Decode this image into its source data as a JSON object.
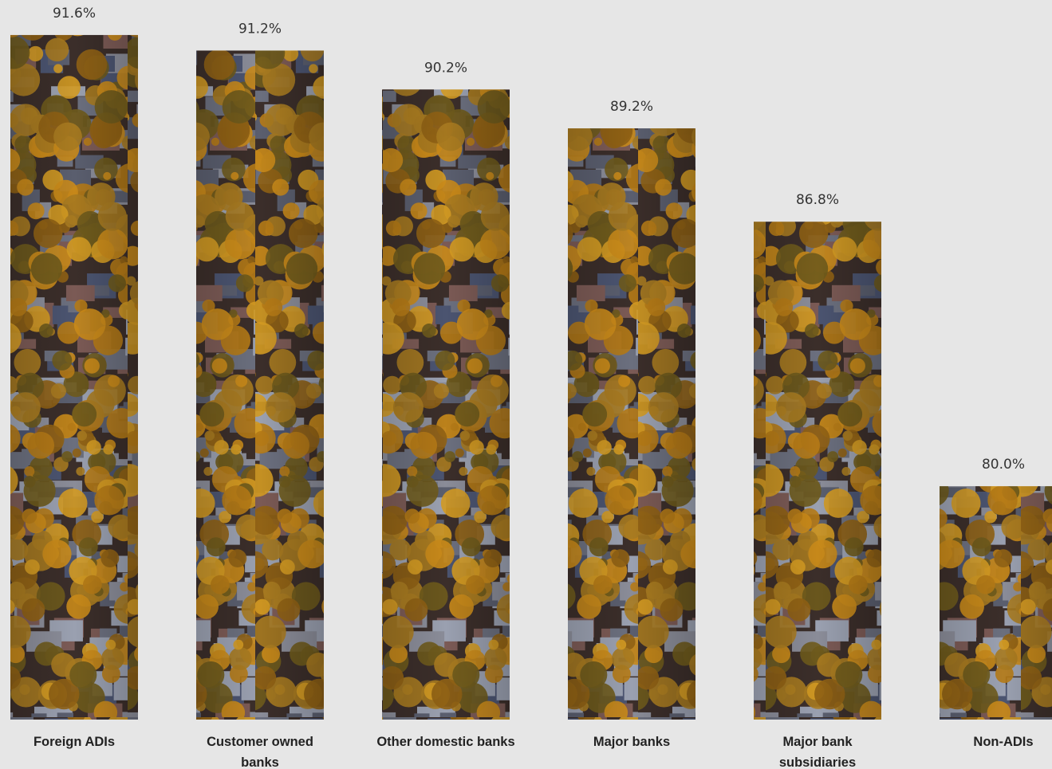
{
  "chart_data": {
    "type": "bar",
    "categories": [
      "Foreign ADIs",
      "Customer owned banks",
      "Other domestic banks",
      "Major banks",
      "Major bank subsidiaries",
      "Non-ADIs"
    ],
    "values": [
      91.6,
      91.2,
      90.2,
      89.2,
      86.8,
      80.0
    ],
    "value_labels": [
      "91.6%",
      "91.2%",
      "90.2%",
      "89.2%",
      "86.8%",
      "80.0%"
    ],
    "ylim": [
      74,
      92.5
    ]
  }
}
